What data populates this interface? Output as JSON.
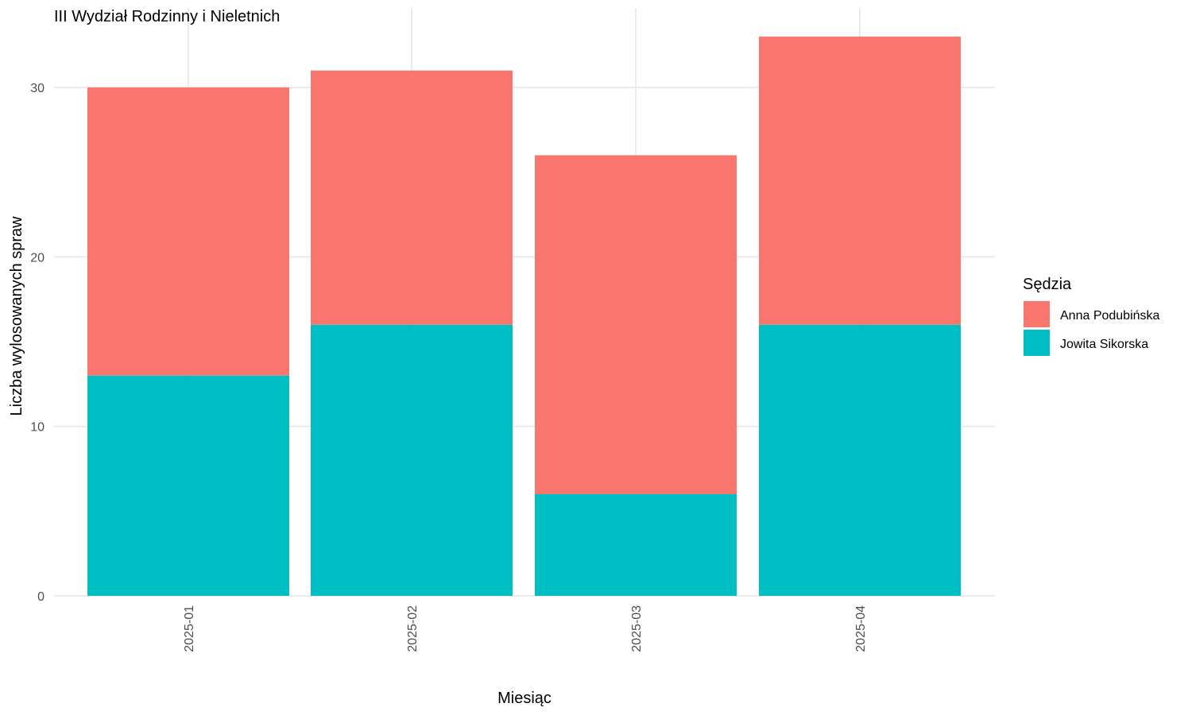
{
  "chart_data": {
    "type": "bar",
    "stacked": true,
    "title": "III Wydział Rodzinny i Nieletnich",
    "xlabel": "Miesiąc",
    "ylabel": "Liczba wylosowanych spraw",
    "categories": [
      "2025-01",
      "2025-02",
      "2025-03",
      "2025-04"
    ],
    "y_ticks": [
      0,
      10,
      20,
      30
    ],
    "ylim": [
      0,
      33
    ],
    "grid": true,
    "legend": {
      "title": "Sędzia",
      "position": "right"
    },
    "series": [
      {
        "name": "Jowita Sikorska",
        "color": "#00BFC4",
        "values": [
          13,
          16,
          6,
          16
        ]
      },
      {
        "name": "Anna Podubińska",
        "color": "#F8766D",
        "values": [
          17,
          15,
          20,
          17
        ]
      }
    ],
    "legend_order": [
      "Anna Podubińska",
      "Jowita Sikorska"
    ]
  }
}
